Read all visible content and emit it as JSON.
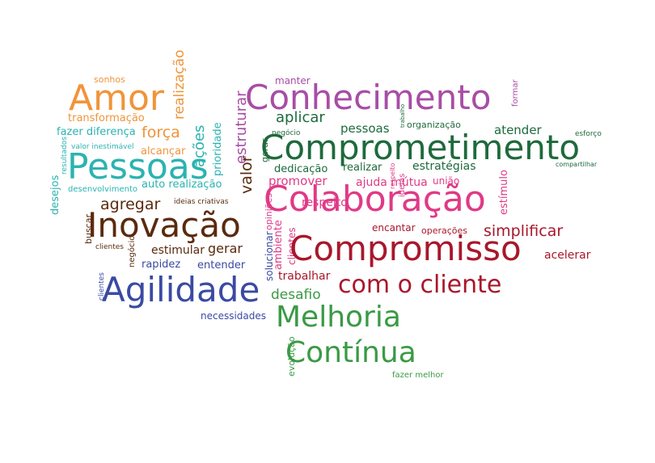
{
  "colors": {
    "orange": "#f0943a",
    "teal": "#2bb3b1",
    "purple": "#a84da5",
    "darkgreen": "#1e6a3c",
    "pink": "#e03a86",
    "brown": "#5a2a0e",
    "darkred": "#a8172b",
    "blue": "#3a4aa3",
    "green": "#3a9a45"
  },
  "words": [
    {
      "text": "Amor",
      "color": "orange"
    },
    {
      "text": "sonhos",
      "color": "orange"
    },
    {
      "text": "realização",
      "color": "orange"
    },
    {
      "text": "transformação",
      "color": "orange"
    },
    {
      "text": "força",
      "color": "orange"
    },
    {
      "text": "alcançar",
      "color": "orange"
    },
    {
      "text": "fazer diferença",
      "color": "teal"
    },
    {
      "text": "valor inestimável",
      "color": "teal"
    },
    {
      "text": "resultados",
      "color": "teal"
    },
    {
      "text": "Pessoas",
      "color": "teal"
    },
    {
      "text": "ações",
      "color": "teal"
    },
    {
      "text": "prioridade",
      "color": "teal"
    },
    {
      "text": "desejos",
      "color": "teal"
    },
    {
      "text": "desenvolvimento",
      "color": "teal"
    },
    {
      "text": "auto realização",
      "color": "teal"
    },
    {
      "text": "estruturar",
      "color": "purple"
    },
    {
      "text": "manter",
      "color": "purple"
    },
    {
      "text": "Conhecimento",
      "color": "purple"
    },
    {
      "text": "formar",
      "color": "purple"
    },
    {
      "text": "aplicar",
      "color": "darkgreen"
    },
    {
      "text": "negócio",
      "color": "darkgreen"
    },
    {
      "text": "pessoas",
      "color": "darkgreen"
    },
    {
      "text": "trabalho",
      "color": "darkgreen"
    },
    {
      "text": "organização",
      "color": "darkgreen"
    },
    {
      "text": "atender",
      "color": "darkgreen"
    },
    {
      "text": "esforço",
      "color": "darkgreen"
    },
    {
      "text": "gerar",
      "color": "darkgreen"
    },
    {
      "text": "Comprometimento",
      "color": "darkgreen"
    },
    {
      "text": "compartilhar",
      "color": "darkgreen"
    },
    {
      "text": "dedicação",
      "color": "darkgreen"
    },
    {
      "text": "realizar",
      "color": "darkgreen"
    },
    {
      "text": "estratégias",
      "color": "darkgreen"
    },
    {
      "text": "promover",
      "color": "pink"
    },
    {
      "text": "respeito",
      "color": "pink"
    },
    {
      "text": "ideias",
      "color": "pink"
    },
    {
      "text": "ajuda mútua",
      "color": "pink"
    },
    {
      "text": "união",
      "color": "pink"
    },
    {
      "text": "estímulo",
      "color": "pink"
    },
    {
      "text": "Colaboração",
      "color": "pink"
    },
    {
      "text": "opiniões",
      "color": "pink"
    },
    {
      "text": "respeito",
      "color": "pink"
    },
    {
      "text": "ambiente",
      "color": "pink"
    },
    {
      "text": "clientes",
      "color": "pink"
    },
    {
      "text": "agregar",
      "color": "brown"
    },
    {
      "text": "ideias criativas",
      "color": "brown"
    },
    {
      "text": "valor",
      "color": "brown"
    },
    {
      "text": "Inovação",
      "color": "brown"
    },
    {
      "text": "buscar",
      "color": "brown"
    },
    {
      "text": "clientes",
      "color": "brown"
    },
    {
      "text": "estimular",
      "color": "brown"
    },
    {
      "text": "gerar",
      "color": "brown"
    },
    {
      "text": "negócio",
      "color": "brown"
    },
    {
      "text": "encantar",
      "color": "darkred"
    },
    {
      "text": "operações",
      "color": "darkred"
    },
    {
      "text": "simplificar",
      "color": "darkred"
    },
    {
      "text": "Compromisso",
      "color": "darkred"
    },
    {
      "text": "acelerar",
      "color": "darkred"
    },
    {
      "text": "trabalhar",
      "color": "darkred"
    },
    {
      "text": "com o cliente",
      "color": "darkred"
    },
    {
      "text": "rapidez",
      "color": "blue"
    },
    {
      "text": "entender",
      "color": "blue"
    },
    {
      "text": "solucionar",
      "color": "blue"
    },
    {
      "text": "clientes",
      "color": "blue"
    },
    {
      "text": "Agilidade",
      "color": "blue"
    },
    {
      "text": "necessidades",
      "color": "blue"
    },
    {
      "text": "desafio",
      "color": "green"
    },
    {
      "text": "Melhoria",
      "color": "green"
    },
    {
      "text": "evolução",
      "color": "green"
    },
    {
      "text": "Contínua",
      "color": "green"
    },
    {
      "text": "fazer melhor",
      "color": "green"
    }
  ]
}
